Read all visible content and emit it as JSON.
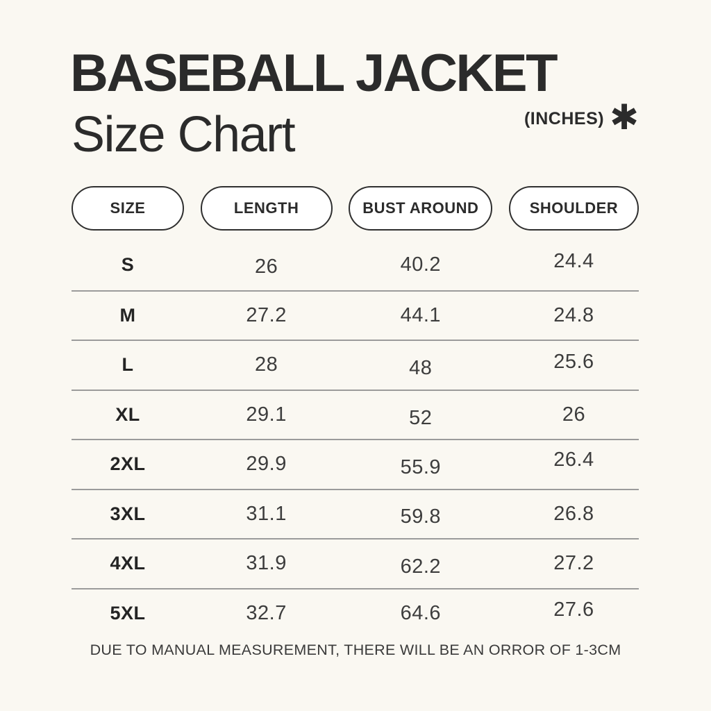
{
  "header": {
    "title": "BASEBALL JACKET",
    "subtitle": "Size Chart",
    "unit_label": "(INCHES)",
    "asterisk_glyph": "✱"
  },
  "chart_data": {
    "type": "table",
    "title": "BASEBALL JACKET Size Chart",
    "unit": "INCHES",
    "columns": [
      "SIZE",
      "LENGTH",
      "BUST AROUND",
      "SHOULDER"
    ],
    "rows": [
      {
        "label": "S",
        "values": [
          "26",
          "40.2",
          "24.4"
        ]
      },
      {
        "label": "M",
        "values": [
          "27.2",
          "44.1",
          "24.8"
        ]
      },
      {
        "label": "L",
        "values": [
          "28",
          "48",
          "25.6"
        ]
      },
      {
        "label": "XL",
        "values": [
          "29.1",
          "52",
          "26"
        ]
      },
      {
        "label": "2XL",
        "values": [
          "29.9",
          "55.9",
          "26.4"
        ]
      },
      {
        "label": "3XL",
        "values": [
          "31.1",
          "59.8",
          "26.8"
        ]
      },
      {
        "label": "4XL",
        "values": [
          "31.9",
          "62.2",
          "27.2"
        ]
      },
      {
        "label": "5XL",
        "values": [
          "32.7",
          "64.6",
          "27.6"
        ]
      }
    ]
  },
  "footer": {
    "note": "DUE TO MANUAL MEASUREMENT, THERE WILL BE AN ORROR OF 1-3CM"
  },
  "colors": {
    "background": "#FAF8F2",
    "ink": "#2B2B2B",
    "number_ink": "#3D3D3D",
    "divider": "#9B9B9B",
    "pill_fill": "#FFFFFF",
    "pill_border": "#2F2F2F"
  }
}
